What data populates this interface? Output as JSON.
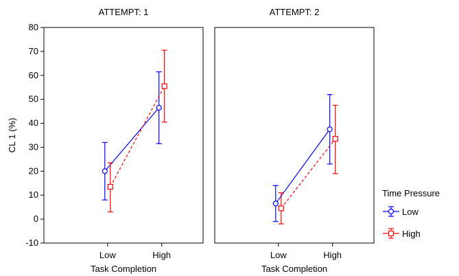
{
  "chart_data": {
    "type": "line",
    "ylabel": "CL 1 (%)",
    "ylim": [
      -10,
      80
    ],
    "yticks": [
      -10,
      0,
      10,
      20,
      30,
      40,
      50,
      60,
      70,
      80
    ],
    "categories": [
      "Low",
      "High"
    ],
    "xlabel": "Task Completion",
    "legend": {
      "title": "Time Pressure",
      "position": "right",
      "entries": [
        "Low",
        "High"
      ]
    },
    "colors": {
      "Low": "#0000ff",
      "High": "#ff0000"
    },
    "panels": [
      {
        "title": "ATTEMPT: 1",
        "series": [
          {
            "name": "Low",
            "values": [
              20,
              46.5
            ],
            "lower": [
              8,
              31.5
            ],
            "upper": [
              32,
              61.5
            ]
          },
          {
            "name": "High",
            "values": [
              13.5,
              55.5
            ],
            "lower": [
              3,
              40.5
            ],
            "upper": [
              23.5,
              70.5
            ]
          }
        ]
      },
      {
        "title": "ATTEMPT: 2",
        "series": [
          {
            "name": "Low",
            "values": [
              6.5,
              37.5
            ],
            "lower": [
              -1,
              23
            ],
            "upper": [
              14,
              52
            ]
          },
          {
            "name": "High",
            "values": [
              4.5,
              33.5
            ],
            "lower": [
              -2,
              19
            ],
            "upper": [
              11,
              47.5
            ]
          }
        ]
      }
    ]
  }
}
